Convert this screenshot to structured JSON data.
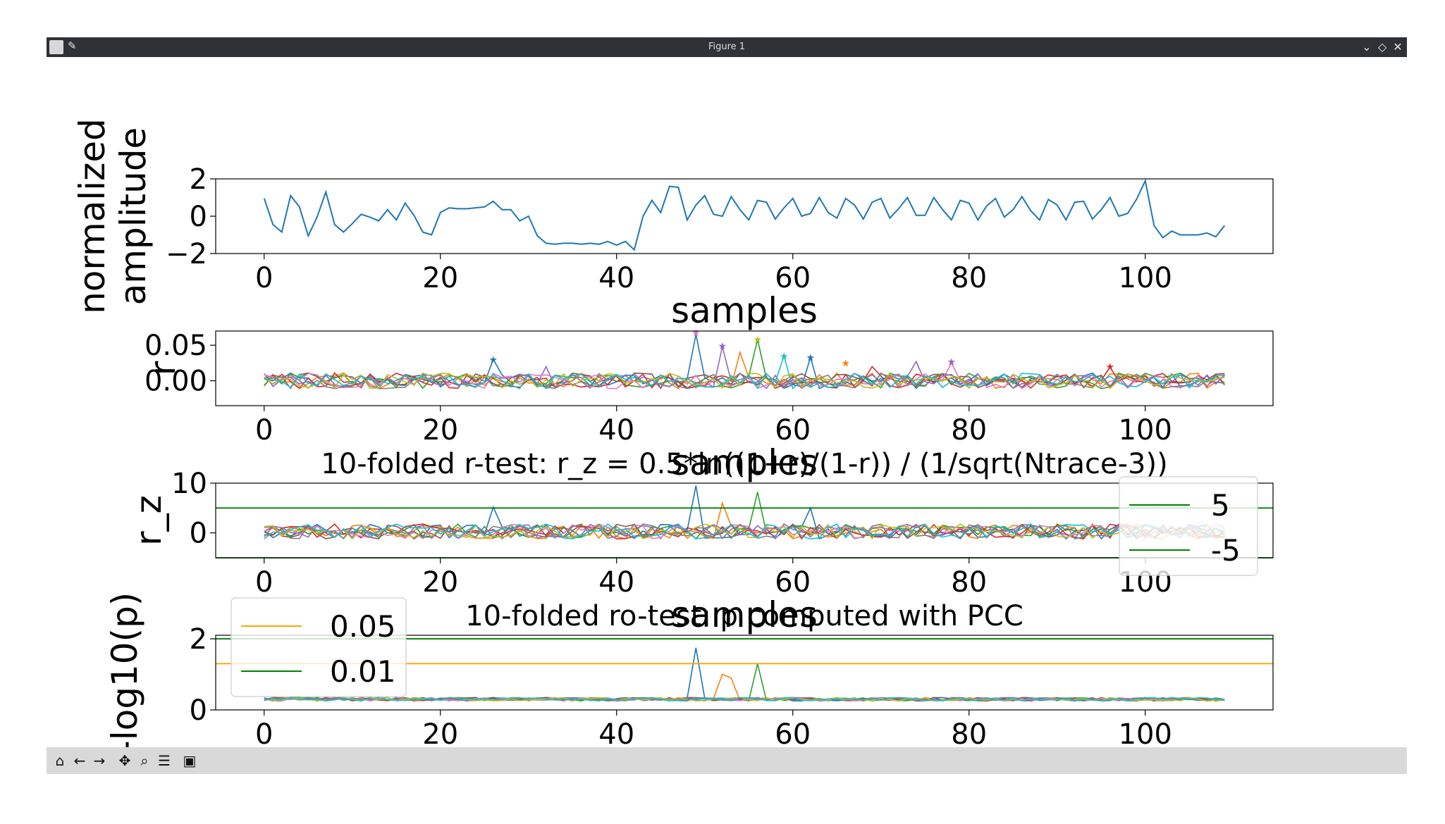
{
  "window": {
    "title": "Figure 1"
  },
  "toolbar": {
    "buttons": [
      {
        "name": "home-button",
        "icon": "home-icon",
        "glyph": "⌂"
      },
      {
        "name": "back-button",
        "icon": "arrow-left-icon",
        "glyph": "←"
      },
      {
        "name": "forward-button",
        "icon": "arrow-right-icon",
        "glyph": "→"
      },
      {
        "name": "pan-button",
        "icon": "move-icon",
        "glyph": "✥"
      },
      {
        "name": "zoom-button",
        "icon": "magnifier-icon",
        "glyph": "⌕"
      },
      {
        "name": "configure-button",
        "icon": "sliders-icon",
        "glyph": "☰"
      },
      {
        "name": "save-button",
        "icon": "floppy-icon",
        "glyph": "▣"
      }
    ]
  },
  "colors": {
    "series": [
      "#1f77b4",
      "#ff7f0e",
      "#2ca02c",
      "#d62728",
      "#9467bd",
      "#8c564b",
      "#e377c2",
      "#7f7f7f",
      "#bcbd22",
      "#17becf"
    ],
    "threshold_green": "#008000",
    "threshold_orange": "#ffa500"
  },
  "chart_data": [
    {
      "type": "line",
      "title": "",
      "xlabel": "samples",
      "ylabel": "normalized\namplitude",
      "xlim": [
        -5.5,
        114.5
      ],
      "ylim": [
        -2,
        2
      ],
      "xticks": [
        "0",
        "20",
        "40",
        "60",
        "80",
        "100"
      ],
      "yticks": [
        "−2",
        "0",
        "2"
      ],
      "series": [
        {
          "values": [
            0.95,
            -0.45,
            -0.85,
            1.1,
            0.5,
            -1.05,
            -0.05,
            1.3,
            -0.45,
            -0.85,
            -0.4,
            0.1,
            -0.05,
            -0.25,
            0.35,
            -0.2,
            0.7,
            0.05,
            -0.85,
            -1.0,
            0.2,
            0.45,
            0.4,
            0.4,
            0.45,
            0.5,
            0.8,
            0.35,
            0.35,
            -0.25,
            0.0,
            -1.05,
            -1.45,
            -1.5,
            -1.45,
            -1.45,
            -1.5,
            -1.45,
            -1.5,
            -1.35,
            -1.55,
            -1.35,
            -1.8,
            0.0,
            0.85,
            0.2,
            1.6,
            1.55,
            -0.2,
            0.6,
            1.1,
            0.1,
            0.0,
            1.05,
            0.35,
            -0.2,
            0.85,
            0.75,
            -0.15,
            0.45,
            0.95,
            0.0,
            0.15,
            1.0,
            0.2,
            -0.1,
            0.95,
            0.6,
            -0.15,
            0.75,
            0.95,
            -0.1,
            0.4,
            1.0,
            0.05,
            0.05,
            1.0,
            0.35,
            -0.2,
            0.85,
            0.7,
            -0.2,
            0.55,
            0.95,
            -0.05,
            0.35,
            1.05,
            0.3,
            -0.2,
            0.9,
            0.6,
            -0.2,
            0.75,
            0.8,
            -0.15,
            0.35,
            1.0,
            0.0,
            0.15,
            0.9,
            1.9,
            -0.5,
            -1.15,
            -0.8,
            -1.0,
            -1.0,
            -1.0,
            -0.9,
            -1.1,
            -0.5
          ]
        }
      ]
    },
    {
      "type": "line",
      "title": "",
      "xlabel": "samples",
      "ylabel": "r",
      "xlim": [
        -5.5,
        114.5
      ],
      "ylim": [
        -0.035,
        0.07
      ],
      "xticks": [
        "0",
        "20",
        "40",
        "60",
        "80",
        "100"
      ],
      "yticks": [
        "0.00",
        "0.05"
      ],
      "series_count": 10,
      "peaks": [
        [
          26,
          0.03,
          0
        ],
        [
          32,
          0.02,
          4
        ],
        [
          49,
          0.065,
          0
        ],
        [
          52,
          0.048,
          4
        ],
        [
          54,
          0.04,
          1
        ],
        [
          56,
          0.058,
          2
        ],
        [
          59,
          0.035,
          9
        ],
        [
          62,
          0.033,
          0
        ],
        [
          69,
          0.02,
          3
        ],
        [
          74,
          0.027,
          4
        ],
        [
          78,
          0.025,
          6
        ],
        [
          96,
          0.019,
          3
        ]
      ],
      "markers": [
        [
          26,
          0.03,
          0
        ],
        [
          49,
          0.068,
          6
        ],
        [
          52,
          0.049,
          4
        ],
        [
          56,
          0.058,
          8
        ],
        [
          59,
          0.035,
          9
        ],
        [
          62,
          0.033,
          0
        ],
        [
          66,
          0.025,
          1
        ],
        [
          78,
          0.027,
          4
        ],
        [
          96,
          0.02,
          3
        ]
      ]
    },
    {
      "type": "line",
      "title": "10-folded r-test: r_z = 0.5*ln((1+r)/(1-r)) / (1/sqrt(Ntrace-3))",
      "xlabel": "samples",
      "ylabel": "r_z",
      "xlim": [
        -5.5,
        114.5
      ],
      "ylim": [
        -5,
        10
      ],
      "xticks": [
        "0",
        "20",
        "40",
        "60",
        "80",
        "100"
      ],
      "yticks": [
        "0",
        "10"
      ],
      "series_count": 10,
      "hlines": [
        {
          "y": 5,
          "label": "5"
        },
        {
          "y": -5,
          "label": "-5"
        }
      ],
      "legend": "right",
      "peaks": [
        [
          49,
          9.5,
          0
        ],
        [
          52,
          6.0,
          1
        ],
        [
          56,
          8.2,
          2
        ],
        [
          26,
          5.2,
          0
        ],
        [
          62,
          5.0,
          0
        ]
      ]
    },
    {
      "type": "line",
      "title": "10-folded ro-test: p computed with PCC",
      "xlabel": "samples",
      "ylabel": "-log10(p)",
      "xlim": [
        -5.5,
        114.5
      ],
      "ylim": [
        0,
        2.1
      ],
      "xticks": [
        "0",
        "20",
        "40",
        "60",
        "80",
        "100"
      ],
      "yticks": [
        "0",
        "2"
      ],
      "series_count": 10,
      "hlines": [
        {
          "y": 1.301,
          "label": "0.05"
        },
        {
          "y": 2.0,
          "label": "0.01"
        }
      ],
      "legend": "upper left",
      "peaks": [
        [
          49,
          1.75,
          0
        ],
        [
          52,
          1.0,
          1
        ],
        [
          53,
          0.9,
          1
        ],
        [
          56,
          1.3,
          2
        ]
      ]
    }
  ]
}
